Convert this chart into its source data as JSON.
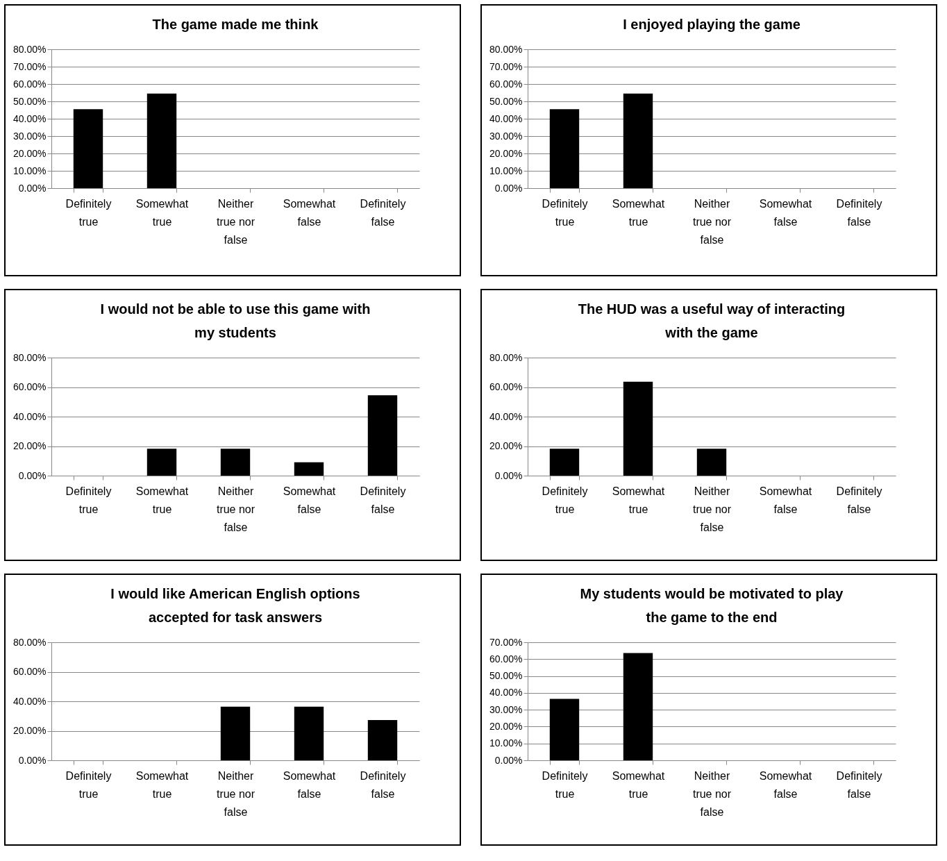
{
  "chart_data": [
    {
      "type": "bar",
      "title": "The game made me think",
      "categories": [
        "Definitely true",
        "Somewhat true",
        "Neither true nor false",
        "Somewhat false",
        "Definitely false"
      ],
      "values": [
        45.5,
        54.5,
        0,
        0,
        0
      ],
      "color": "#000000",
      "ylim": [
        0,
        80
      ],
      "yticks": [
        {
          "value": 0,
          "label": "0.00%"
        },
        {
          "value": 10,
          "label": "10.00%"
        },
        {
          "value": 20,
          "label": "20.00%"
        },
        {
          "value": 30,
          "label": "30.00%"
        },
        {
          "value": 40,
          "label": "40.00%"
        },
        {
          "value": 50,
          "label": "50.00%"
        },
        {
          "value": 60,
          "label": "60.00%"
        },
        {
          "value": 70,
          "label": "70.00%"
        },
        {
          "value": 80,
          "label": "80.00%"
        }
      ],
      "grid": "y"
    },
    {
      "type": "bar",
      "title": "I enjoyed playing the game",
      "categories": [
        "Definitely true",
        "Somewhat true",
        "Neither true nor false",
        "Somewhat false",
        "Definitely false"
      ],
      "values": [
        45.5,
        54.5,
        0,
        0,
        0
      ],
      "color": "#000000",
      "ylim": [
        0,
        80
      ],
      "yticks": [
        {
          "value": 0,
          "label": "0.00%"
        },
        {
          "value": 10,
          "label": "10.00%"
        },
        {
          "value": 20,
          "label": "20.00%"
        },
        {
          "value": 30,
          "label": "30.00%"
        },
        {
          "value": 40,
          "label": "40.00%"
        },
        {
          "value": 50,
          "label": "50.00%"
        },
        {
          "value": 60,
          "label": "60.00%"
        },
        {
          "value": 70,
          "label": "70.00%"
        },
        {
          "value": 80,
          "label": "80.00%"
        }
      ],
      "grid": "y"
    },
    {
      "type": "bar",
      "title": "I would not be able to use this game with my students",
      "categories": [
        "Definitely true",
        "Somewhat true",
        "Neither true nor false",
        "Somewhat false",
        "Definitely false"
      ],
      "values": [
        0,
        18.2,
        18.2,
        9.1,
        54.5
      ],
      "color": "#000000",
      "ylim": [
        0,
        80
      ],
      "yticks": [
        {
          "value": 0,
          "label": "0.00%"
        },
        {
          "value": 20,
          "label": "20.00%"
        },
        {
          "value": 40,
          "label": "40.00%"
        },
        {
          "value": 60,
          "label": "60.00%"
        },
        {
          "value": 80,
          "label": "80.00%"
        }
      ],
      "grid": "y"
    },
    {
      "type": "bar",
      "title": "The HUD was a useful way of interacting with the game",
      "categories": [
        "Definitely true",
        "Somewhat true",
        "Neither true nor false",
        "Somewhat false",
        "Definitely false"
      ],
      "values": [
        18.2,
        63.6,
        18.2,
        0,
        0
      ],
      "color": "#000000",
      "ylim": [
        0,
        80
      ],
      "yticks": [
        {
          "value": 0,
          "label": "0.00%"
        },
        {
          "value": 20,
          "label": "20.00%"
        },
        {
          "value": 40,
          "label": "40.00%"
        },
        {
          "value": 60,
          "label": "60.00%"
        },
        {
          "value": 80,
          "label": "80.00%"
        }
      ],
      "grid": "y"
    },
    {
      "type": "bar",
      "title": "I would like American English options accepted for task answers",
      "categories": [
        "Definitely true",
        "Somewhat true",
        "Neither true nor false",
        "Somewhat false",
        "Definitely false"
      ],
      "values": [
        0,
        0,
        36.4,
        36.4,
        27.3
      ],
      "color": "#000000",
      "ylim": [
        0,
        80
      ],
      "yticks": [
        {
          "value": 0,
          "label": "0.00%"
        },
        {
          "value": 20,
          "label": "20.00%"
        },
        {
          "value": 40,
          "label": "40.00%"
        },
        {
          "value": 60,
          "label": "60.00%"
        },
        {
          "value": 80,
          "label": "80.00%"
        }
      ],
      "grid": "y"
    },
    {
      "type": "bar",
      "title": "My students would be motivated to play the game to the end",
      "categories": [
        "Definitely true",
        "Somewhat true",
        "Neither true nor false",
        "Somewhat false",
        "Definitely false"
      ],
      "values": [
        36.4,
        63.6,
        0,
        0,
        0
      ],
      "color": "#000000",
      "ylim": [
        0,
        70
      ],
      "yticks": [
        {
          "value": 0,
          "label": "0.00%"
        },
        {
          "value": 10,
          "label": "10.00%"
        },
        {
          "value": 20,
          "label": "20.00%"
        },
        {
          "value": 30,
          "label": "30.00%"
        },
        {
          "value": 40,
          "label": "40.00%"
        },
        {
          "value": 50,
          "label": "50.00%"
        },
        {
          "value": 60,
          "label": "60.00%"
        },
        {
          "value": 70,
          "label": "70.00%"
        }
      ],
      "grid": "y"
    }
  ]
}
